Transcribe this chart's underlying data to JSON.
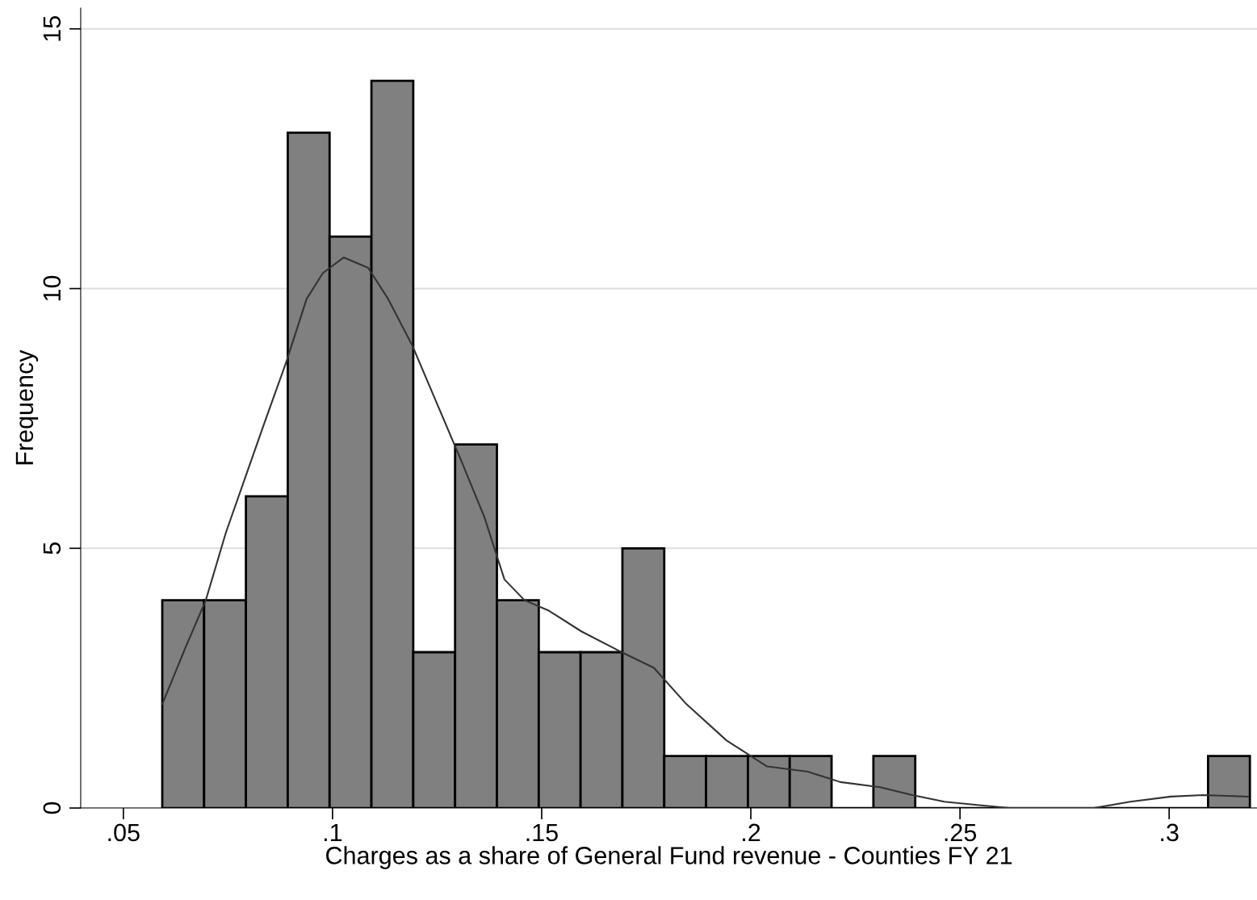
{
  "chart_data": {
    "type": "histogram",
    "xlabel": "Charges as a share of General Fund revenue - Counties FY 21",
    "ylabel": "Frequency",
    "bins": [
      0.0593,
      0.0693,
      0.0793,
      0.0893,
      0.0993,
      0.1093,
      0.1193,
      0.1293,
      0.1393,
      0.1493,
      0.1593,
      0.1693,
      0.1793,
      0.1893,
      0.1993,
      0.2093,
      0.2193,
      0.2293,
      0.2393,
      0.2493,
      0.2593,
      0.2693,
      0.2793,
      0.2893,
      0.2993,
      0.3093,
      0.3193
    ],
    "values": [
      4,
      4,
      6,
      13,
      11,
      14,
      3,
      7,
      4,
      3,
      3,
      5,
      1,
      1,
      1,
      1,
      0,
      1,
      0,
      0,
      0,
      0,
      0,
      0,
      0,
      1
    ],
    "color": "#808080",
    "series": [
      {
        "type": "line",
        "color": "#333333",
        "x": [
          0.0593,
          0.0649,
          0.0697,
          0.0745,
          0.0793,
          0.0841,
          0.089,
          0.0938,
          0.0977,
          0.1027,
          0.1085,
          0.1133,
          0.1191,
          0.1249,
          0.1307,
          0.1363,
          0.1411,
          0.1459,
          0.1517,
          0.1595,
          0.1691,
          0.1768,
          0.1846,
          0.1942,
          0.2039,
          0.2136,
          0.2214,
          0.2309,
          0.2386,
          0.2463,
          0.2541,
          0.2618,
          0.2714,
          0.282,
          0.2907,
          0.3004,
          0.3081,
          0.3189
        ],
        "values": [
          2.0,
          3.1,
          4.0,
          5.3,
          6.4,
          7.5,
          8.6,
          9.8,
          10.3,
          10.6,
          10.4,
          9.8,
          8.9,
          7.8,
          6.7,
          5.6,
          4.4,
          4.0,
          3.8,
          3.4,
          3.0,
          2.7,
          2.0,
          1.3,
          0.8,
          0.7,
          0.5,
          0.4,
          0.25,
          0.12,
          0.06,
          0,
          0,
          0,
          0.12,
          0.22,
          0.25,
          0.22
        ]
      }
    ],
    "xlim": [
      0.0398,
      0.321
    ],
    "ylim": [
      0,
      15.4
    ],
    "xticks": [
      {
        "value": 0.05,
        "label": ".05"
      },
      {
        "value": 0.1,
        "label": ".1"
      },
      {
        "value": 0.15,
        "label": ".15"
      },
      {
        "value": 0.2,
        "label": ".2"
      },
      {
        "value": 0.25,
        "label": ".25"
      },
      {
        "value": 0.3,
        "label": ".3"
      }
    ],
    "yticks": [
      0,
      5,
      10,
      15
    ],
    "grid": "y",
    "legend": false
  }
}
